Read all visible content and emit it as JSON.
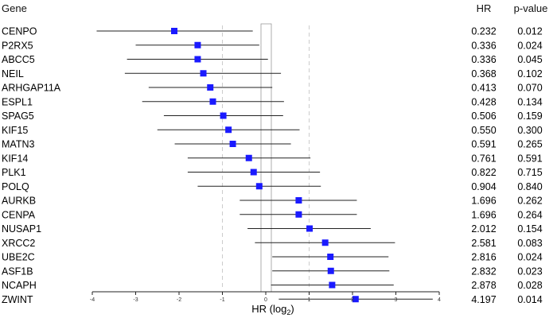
{
  "headers": {
    "gene": "Gene",
    "hr": "HR",
    "pvalue": "p-value"
  },
  "colors": {
    "marker": "#1a1aff",
    "ci_line": "#222222",
    "ref_line": "#cccccc"
  },
  "chart_data": {
    "type": "forest",
    "xlabel_main": "HR (log",
    "xlabel_sub": "2",
    "xlabel_end": ")",
    "xlim": [
      -4,
      4
    ],
    "xticks": [
      -4,
      -3,
      -2,
      -1,
      0,
      1,
      2,
      3,
      4
    ],
    "reference_lines": [
      -1,
      1
    ],
    "rows": [
      {
        "gene": "CENPO",
        "log2hr": -2.11,
        "lo": -3.9,
        "hi": -0.3,
        "hr": "0.232",
        "p": "0.012"
      },
      {
        "gene": "P2RX5",
        "log2hr": -1.57,
        "lo": -3.0,
        "hi": -0.15,
        "hr": "0.336",
        "p": "0.024"
      },
      {
        "gene": "ABCC5",
        "log2hr": -1.57,
        "lo": -3.2,
        "hi": 0.05,
        "hr": "0.336",
        "p": "0.045"
      },
      {
        "gene": "NEIL",
        "log2hr": -1.44,
        "lo": -3.25,
        "hi": 0.35,
        "hr": "0.368",
        "p": "0.102"
      },
      {
        "gene": "ARHGAP11A",
        "log2hr": -1.28,
        "lo": -2.7,
        "hi": 0.15,
        "hr": "0.413",
        "p": "0.070"
      },
      {
        "gene": "ESPL1",
        "log2hr": -1.22,
        "lo": -2.85,
        "hi": 0.42,
        "hr": "0.428",
        "p": "0.134"
      },
      {
        "gene": "SPAG5",
        "log2hr": -0.98,
        "lo": -2.35,
        "hi": 0.4,
        "hr": "0.506",
        "p": "0.159"
      },
      {
        "gene": "KIF15",
        "log2hr": -0.86,
        "lo": -2.5,
        "hi": 0.78,
        "hr": "0.550",
        "p": "0.300"
      },
      {
        "gene": "MATN3",
        "log2hr": -0.76,
        "lo": -2.1,
        "hi": 0.58,
        "hr": "0.591",
        "p": "0.265"
      },
      {
        "gene": "KIF14",
        "log2hr": -0.39,
        "lo": -1.8,
        "hi": 1.03,
        "hr": "0.761",
        "p": "0.591"
      },
      {
        "gene": "PLK1",
        "log2hr": -0.28,
        "lo": -1.8,
        "hi": 1.25,
        "hr": "0.822",
        "p": "0.715"
      },
      {
        "gene": "POLQ",
        "log2hr": -0.15,
        "lo": -1.57,
        "hi": 1.27,
        "hr": "0.904",
        "p": "0.840"
      },
      {
        "gene": "AURKB",
        "log2hr": 0.76,
        "lo": -0.6,
        "hi": 2.1,
        "hr": "1.696",
        "p": "0.262"
      },
      {
        "gene": "CENPA",
        "log2hr": 0.76,
        "lo": -0.6,
        "hi": 2.1,
        "hr": "1.696",
        "p": "0.264"
      },
      {
        "gene": "NUSAP1",
        "log2hr": 1.01,
        "lo": -0.42,
        "hi": 2.42,
        "hr": "2.012",
        "p": "0.154"
      },
      {
        "gene": "XRCC2",
        "log2hr": 1.37,
        "lo": -0.25,
        "hi": 2.98,
        "hr": "2.581",
        "p": "0.083"
      },
      {
        "gene": "UBE2C",
        "log2hr": 1.49,
        "lo": 0.15,
        "hi": 2.83,
        "hr": "2.816",
        "p": "0.024"
      },
      {
        "gene": "ASF1B",
        "log2hr": 1.5,
        "lo": 0.15,
        "hi": 2.85,
        "hr": "2.832",
        "p": "0.023"
      },
      {
        "gene": "NCAPH",
        "log2hr": 1.53,
        "lo": 0.12,
        "hi": 2.95,
        "hr": "2.878",
        "p": "0.028"
      },
      {
        "gene": "ZWINT",
        "log2hr": 2.07,
        "lo": 0.3,
        "hi": 3.85,
        "hr": "4.197",
        "p": "0.014"
      }
    ]
  }
}
